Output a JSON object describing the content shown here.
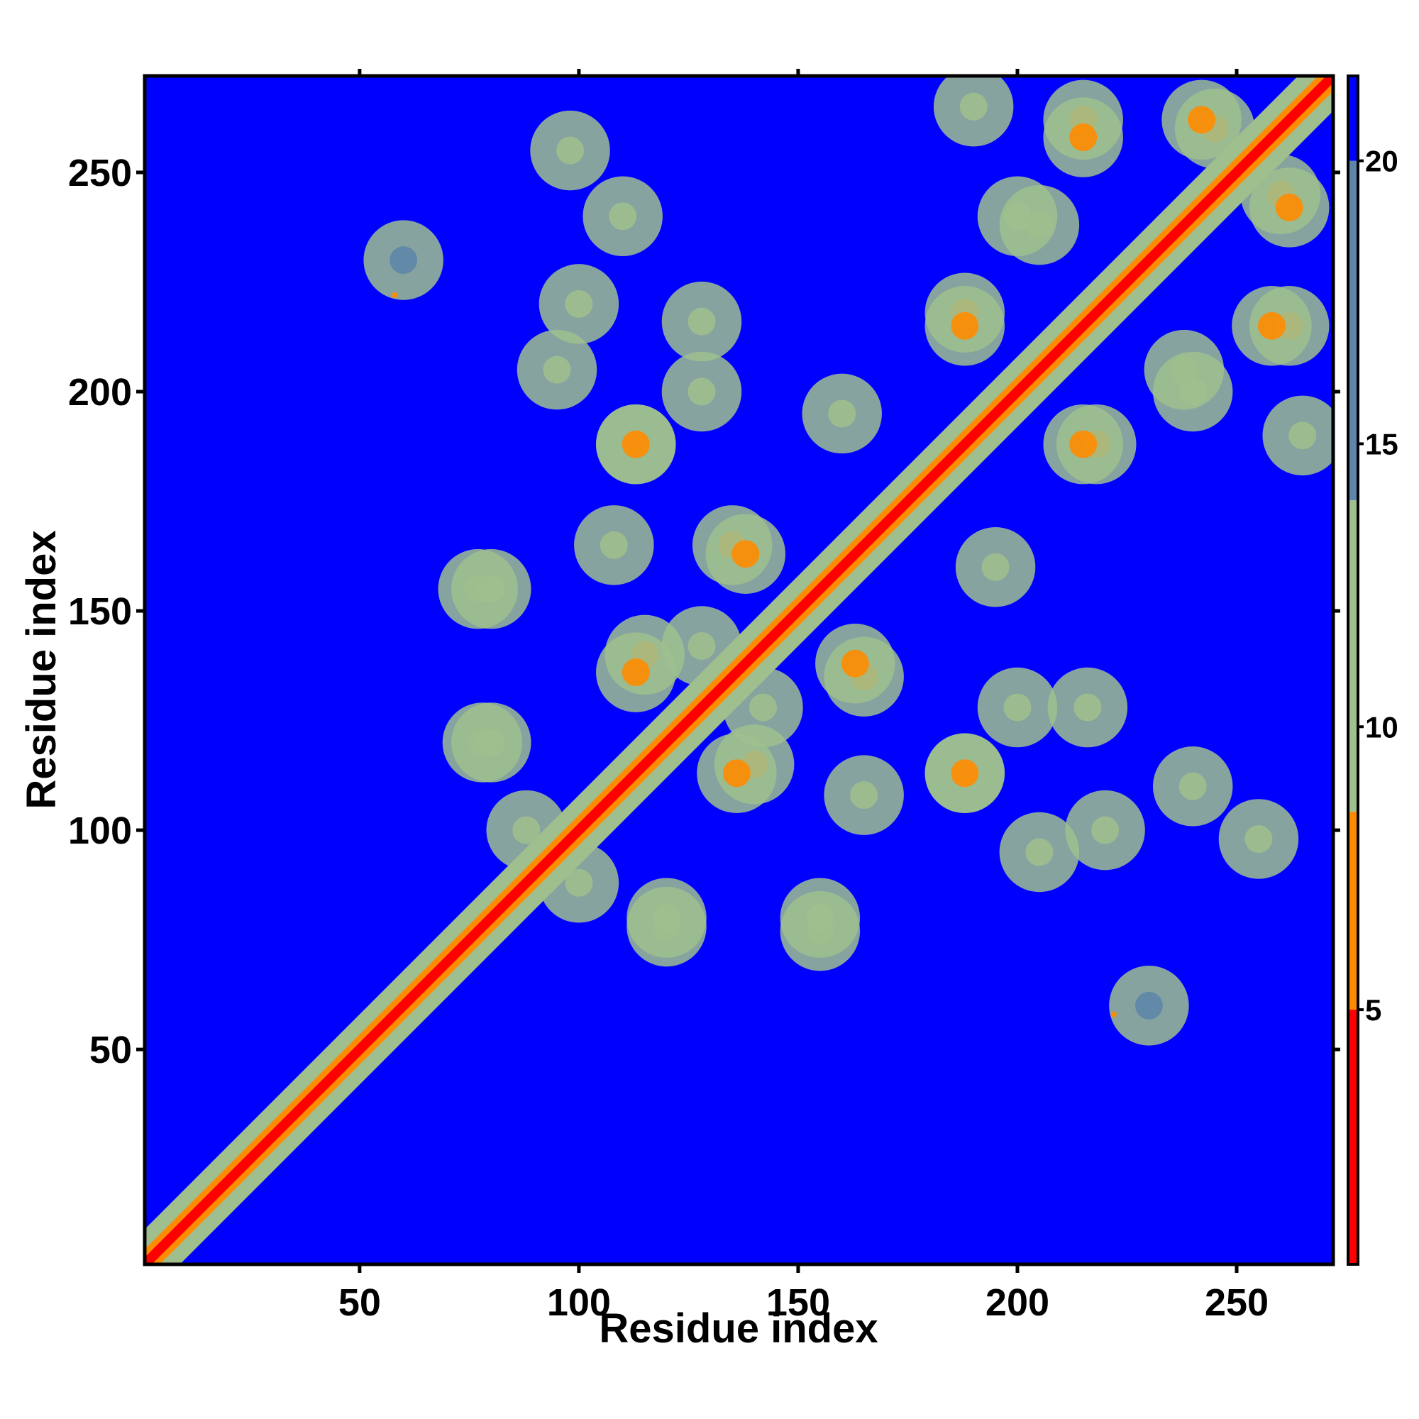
{
  "chart_data": {
    "type": "heatmap",
    "title": "",
    "xlabel": "Residue index",
    "ylabel": "Residue index",
    "xlim": [
      1,
      272
    ],
    "ylim": [
      1,
      272
    ],
    "xticks": [
      50,
      100,
      150,
      200,
      250
    ],
    "yticks": [
      50,
      100,
      150,
      200,
      250
    ],
    "colorbar": {
      "ticks": [
        5,
        10,
        15,
        20
      ],
      "range": [
        0.5,
        21.5
      ],
      "colors": {
        "near": "#ff0000",
        "close": "#ff8c00",
        "mid": "#9fbf8e",
        "far": "#5f86a8",
        "background": "#0000ff"
      }
    },
    "matrix_description_values": {
      "diagonal_distance": 3.8,
      "background_distance": 21
    },
    "contact_blobs": [
      {
        "x": 110,
        "y": 240,
        "value": 13
      },
      {
        "x": 60,
        "y": 230,
        "value": 14
      },
      {
        "x": 128,
        "y": 216,
        "value": 12
      },
      {
        "x": 95,
        "y": 205,
        "value": 13
      },
      {
        "x": 113,
        "y": 188,
        "value": 7
      },
      {
        "x": 80,
        "y": 155,
        "value": 12
      },
      {
        "x": 115,
        "y": 140,
        "value": 7
      },
      {
        "x": 135,
        "y": 165,
        "value": 8
      },
      {
        "x": 80,
        "y": 120,
        "value": 12
      },
      {
        "x": 136,
        "y": 113,
        "value": 7
      },
      {
        "x": 120,
        "y": 78,
        "value": 12
      },
      {
        "x": 155,
        "y": 77,
        "value": 12
      },
      {
        "x": 165,
        "y": 108,
        "value": 12
      },
      {
        "x": 188,
        "y": 113,
        "value": 7
      },
      {
        "x": 200,
        "y": 128,
        "value": 12
      },
      {
        "x": 220,
        "y": 100,
        "value": 12
      },
      {
        "x": 255,
        "y": 98,
        "value": 12
      },
      {
        "x": 163,
        "y": 138,
        "value": 7
      },
      {
        "x": 160,
        "y": 195,
        "value": 12
      },
      {
        "x": 188,
        "y": 218,
        "value": 7
      },
      {
        "x": 215,
        "y": 188,
        "value": 7
      },
      {
        "x": 200,
        "y": 240,
        "value": 12
      },
      {
        "x": 215,
        "y": 262,
        "value": 7
      },
      {
        "x": 245,
        "y": 260,
        "value": 7
      },
      {
        "x": 262,
        "y": 242,
        "value": 7
      },
      {
        "x": 258,
        "y": 215,
        "value": 7
      },
      {
        "x": 265,
        "y": 190,
        "value": 12
      },
      {
        "x": 238,
        "y": 205,
        "value": 12
      },
      {
        "x": 100,
        "y": 88,
        "value": 12
      },
      {
        "x": 142,
        "y": 128,
        "value": 12
      }
    ],
    "isolated_contacts": [
      {
        "x": 58,
        "y": 222,
        "value": 5
      },
      {
        "x": 222,
        "y": 58,
        "value": 5
      }
    ]
  }
}
